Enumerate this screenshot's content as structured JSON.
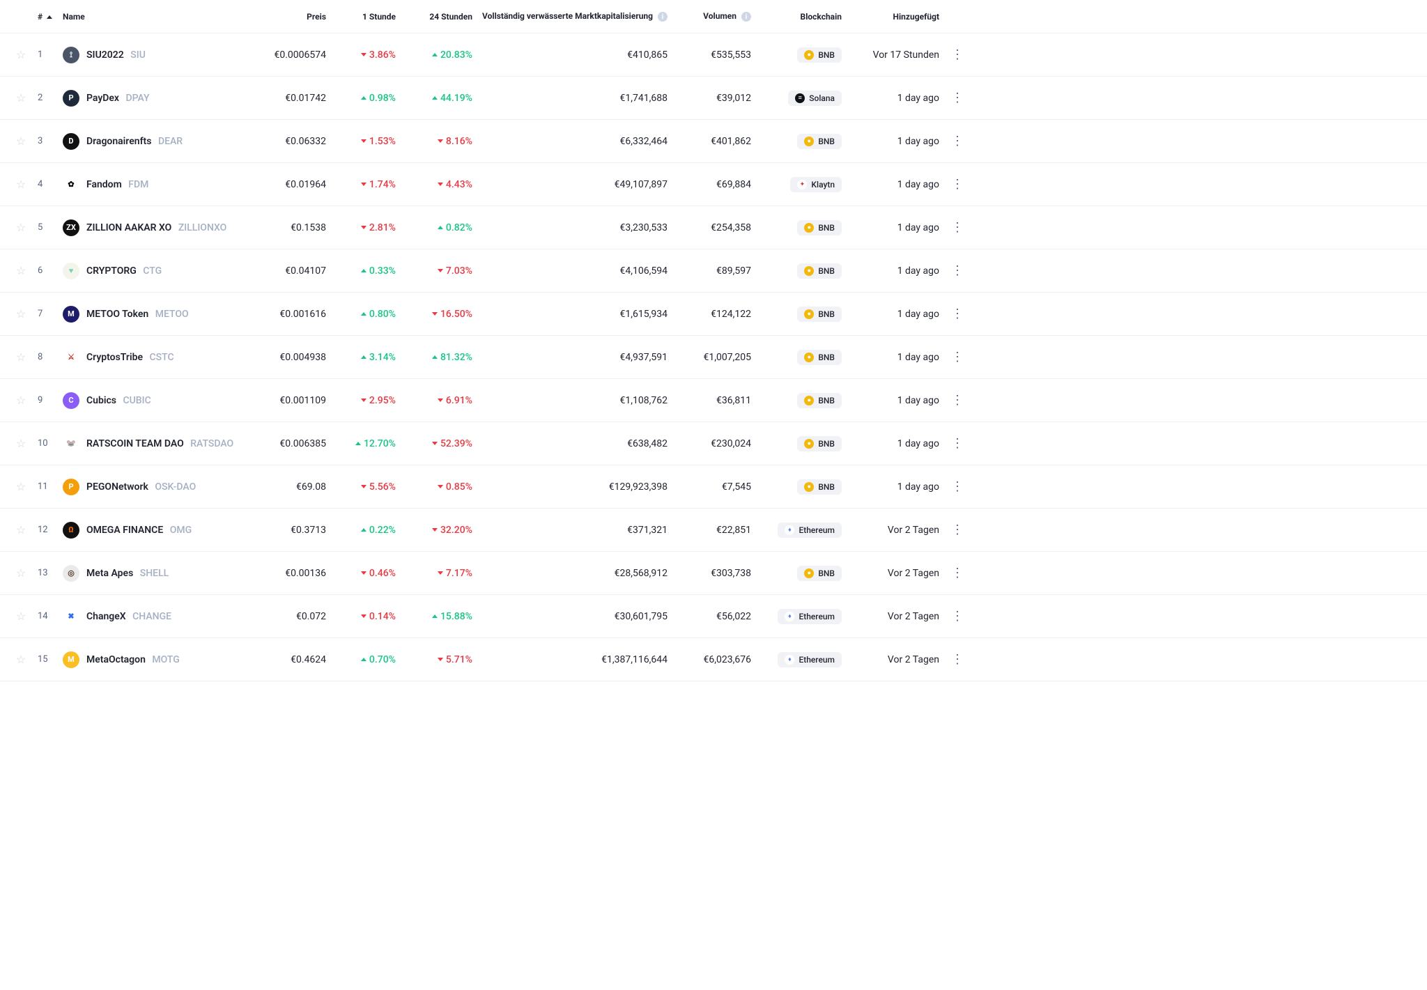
{
  "headers": {
    "rank": "#",
    "name": "Name",
    "price": "Preis",
    "h1": "1 Stunde",
    "h24": "24 Stunden",
    "fdv": "Vollständig verwässerte Marktkapitalisierung",
    "volume": "Volumen",
    "blockchain": "Blockchain",
    "added": "Hinzugefügt"
  },
  "blockchains": {
    "bnb": {
      "label": "BNB",
      "dot_bg": "#f0b90b",
      "glyph": "●"
    },
    "solana": {
      "label": "Solana",
      "dot_bg": "#0e1118",
      "glyph": "≡"
    },
    "klaytn": {
      "label": "Klaytn",
      "dot_bg": "#ffffff",
      "glyph": "✦",
      "glyph_color": "#d63139"
    },
    "ethereum": {
      "label": "Ethereum",
      "dot_bg": "#ffffff",
      "glyph": "♦",
      "glyph_color": "#627eea"
    }
  },
  "rows": [
    {
      "rank": 1,
      "name": "SIU2022",
      "symbol": "SIU",
      "price": "€0.0006574",
      "h1_dir": "down",
      "h1": "3.86%",
      "h24_dir": "up",
      "h24": "20.83%",
      "fdv": "€410,865",
      "vol": "€535,553",
      "chain": "bnb",
      "added": "Vor 17 Stunden",
      "icon_bg": "#4a5568",
      "icon_glyph": "⟟"
    },
    {
      "rank": 2,
      "name": "PayDex",
      "symbol": "DPAY",
      "price": "€0.01742",
      "h1_dir": "up",
      "h1": "0.98%",
      "h24_dir": "up",
      "h24": "44.19%",
      "fdv": "€1,741,688",
      "vol": "€39,012",
      "chain": "solana",
      "added": "1 day ago",
      "icon_bg": "#1e293b",
      "icon_glyph": "P"
    },
    {
      "rank": 3,
      "name": "Dragonairenfts",
      "symbol": "DEAR",
      "price": "€0.06332",
      "h1_dir": "down",
      "h1": "1.53%",
      "h24_dir": "down",
      "h24": "8.16%",
      "fdv": "€6,332,464",
      "vol": "€401,862",
      "chain": "bnb",
      "added": "1 day ago",
      "icon_bg": "#111111",
      "icon_glyph": "D"
    },
    {
      "rank": 4,
      "name": "Fandom",
      "symbol": "FDM",
      "price": "€0.01964",
      "h1_dir": "down",
      "h1": "1.74%",
      "h24_dir": "down",
      "h24": "4.43%",
      "fdv": "€49,107,897",
      "vol": "€69,884",
      "chain": "klaytn",
      "added": "1 day ago",
      "icon_bg": "#ffffff",
      "icon_glyph": "✿",
      "icon_glyph_color": "#000000"
    },
    {
      "rank": 5,
      "name": "ZILLION AAKAR XO",
      "symbol": "ZILLIONXO",
      "price": "€0.1538",
      "h1_dir": "down",
      "h1": "2.81%",
      "h24_dir": "up",
      "h24": "0.82%",
      "fdv": "€3,230,533",
      "vol": "€254,358",
      "chain": "bnb",
      "added": "1 day ago",
      "icon_bg": "#111111",
      "icon_glyph": "ZX"
    },
    {
      "rank": 6,
      "name": "CRYPTORG",
      "symbol": "CTG",
      "price": "€0.04107",
      "h1_dir": "up",
      "h1": "0.33%",
      "h24_dir": "down",
      "h24": "7.03%",
      "fdv": "€4,106,594",
      "vol": "€89,597",
      "chain": "bnb",
      "added": "1 day ago",
      "icon_bg": "#f3f4ea",
      "icon_glyph": "♥",
      "icon_glyph_color": "#78d0bd"
    },
    {
      "rank": 7,
      "name": "METOO Token",
      "symbol": "METOO",
      "price": "€0.001616",
      "h1_dir": "up",
      "h1": "0.80%",
      "h24_dir": "down",
      "h24": "16.50%",
      "fdv": "€1,615,934",
      "vol": "€124,122",
      "chain": "bnb",
      "added": "1 day ago",
      "icon_bg": "#1e1b6b",
      "icon_glyph": "M"
    },
    {
      "rank": 8,
      "name": "CryptosTribe",
      "symbol": "CSTC",
      "price": "€0.004938",
      "h1_dir": "up",
      "h1": "3.14%",
      "h24_dir": "up",
      "h24": "81.32%",
      "fdv": "€4,937,591",
      "vol": "€1,007,205",
      "chain": "bnb",
      "added": "1 day ago",
      "icon_bg": "#ffffff",
      "icon_glyph": "⚔",
      "icon_glyph_color": "#c0392b"
    },
    {
      "rank": 9,
      "name": "Cubics",
      "symbol": "CUBIC",
      "price": "€0.001109",
      "h1_dir": "down",
      "h1": "2.95%",
      "h24_dir": "down",
      "h24": "6.91%",
      "fdv": "€1,108,762",
      "vol": "€36,811",
      "chain": "bnb",
      "added": "1 day ago",
      "icon_bg": "#8b5cf6",
      "icon_glyph": "C"
    },
    {
      "rank": 10,
      "name": "RATSCOIN TEAM DAO",
      "symbol": "RATSDAO",
      "price": "€0.006385",
      "h1_dir": "up",
      "h1": "12.70%",
      "h24_dir": "down",
      "h24": "52.39%",
      "fdv": "€638,482",
      "vol": "€230,024",
      "chain": "bnb",
      "added": "1 day ago",
      "icon_bg": "#ffffff",
      "icon_glyph": "🐭"
    },
    {
      "rank": 11,
      "name": "PEGONetwork",
      "symbol": "OSK-DAO",
      "price": "€69.08",
      "h1_dir": "down",
      "h1": "5.56%",
      "h24_dir": "down",
      "h24": "0.85%",
      "fdv": "€129,923,398",
      "vol": "€7,545",
      "chain": "bnb",
      "added": "1 day ago",
      "icon_bg": "#f59e0b",
      "icon_glyph": "P"
    },
    {
      "rank": 12,
      "name": "OMEGA FINANCE",
      "symbol": "OMG",
      "price": "€0.3713",
      "h1_dir": "up",
      "h1": "0.22%",
      "h24_dir": "down",
      "h24": "32.20%",
      "fdv": "€371,321",
      "vol": "€22,851",
      "chain": "ethereum",
      "added": "Vor 2 Tagen",
      "icon_bg": "#111111",
      "icon_glyph": "Ω",
      "icon_glyph_color": "#ef6c00"
    },
    {
      "rank": 13,
      "name": "Meta Apes",
      "symbol": "SHELL",
      "price": "€0.00136",
      "h1_dir": "down",
      "h1": "0.46%",
      "h24_dir": "down",
      "h24": "7.17%",
      "fdv": "€28,568,912",
      "vol": "€303,738",
      "chain": "bnb",
      "added": "Vor 2 Tagen",
      "icon_bg": "#eaeaea",
      "icon_glyph": "◎",
      "icon_glyph_color": "#5a3e2b"
    },
    {
      "rank": 14,
      "name": "ChangeX",
      "symbol": "CHANGE",
      "price": "€0.072",
      "h1_dir": "down",
      "h1": "0.14%",
      "h24_dir": "up",
      "h24": "15.88%",
      "fdv": "€30,601,795",
      "vol": "€56,022",
      "chain": "ethereum",
      "added": "Vor 2 Tagen",
      "icon_bg": "#ffffff",
      "icon_glyph": "✖",
      "icon_glyph_color": "#2f6fed"
    },
    {
      "rank": 15,
      "name": "MetaOctagon",
      "symbol": "MOTG",
      "price": "€0.4624",
      "h1_dir": "up",
      "h1": "0.70%",
      "h24_dir": "down",
      "h24": "5.71%",
      "fdv": "€1,387,116,644",
      "vol": "€6,023,676",
      "chain": "ethereum",
      "added": "Vor 2 Tagen",
      "icon_bg": "#fbbf24",
      "icon_glyph": "M"
    }
  ]
}
